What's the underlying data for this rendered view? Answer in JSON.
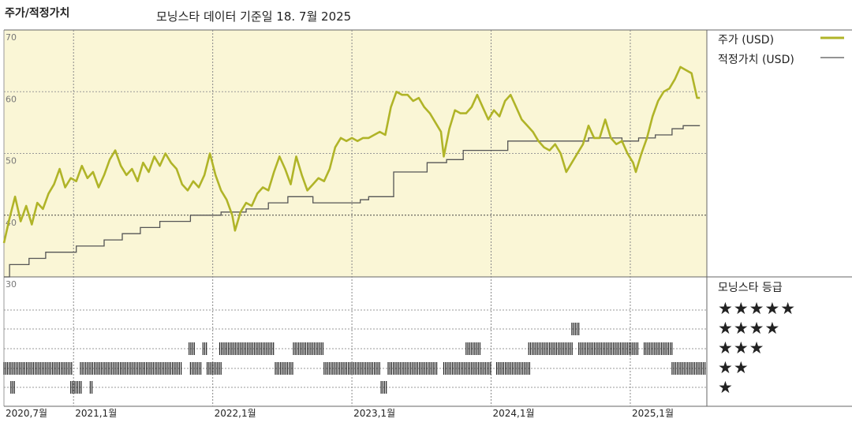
{
  "header": {
    "title": "주가/적정가치",
    "subtitle": "모닝스타 데이터 기준일 18. 7월 2025"
  },
  "legend": {
    "price": "주가 (USD)",
    "fair_value": "적정가치 (USD)"
  },
  "rating": {
    "title": "모닝스타 등급",
    "levels": [
      "★★★★★",
      "★★★★",
      "★★★",
      "★★",
      "★"
    ]
  },
  "colors": {
    "price_line": "#b0b428",
    "fair_value_line": "#555555",
    "plot_bg": "#faf6d6",
    "rating_bar": "#222222"
  },
  "chart_data": {
    "type": "line",
    "y_ticks": [
      30,
      40,
      50,
      60,
      70
    ],
    "ylim": [
      30,
      70
    ],
    "x_ticks": [
      {
        "label": "2020,7월",
        "t": 2020.5
      },
      {
        "label": "2021,1월",
        "t": 2021.0
      },
      {
        "label": "2022,1월",
        "t": 2022.0
      },
      {
        "label": "2023,1월",
        "t": 2023.0
      },
      {
        "label": "2024,1월",
        "t": 2024.0
      },
      {
        "label": "2025,1월",
        "t": 2025.0
      }
    ],
    "xlim": [
      2020.5,
      2025.55
    ],
    "dashed_ref_y": 40,
    "series": [
      {
        "name": "주가 (USD)",
        "points": [
          [
            2020.5,
            35.5
          ],
          [
            2020.54,
            39.5
          ],
          [
            2020.58,
            43.0
          ],
          [
            2020.62,
            39.0
          ],
          [
            2020.66,
            41.5
          ],
          [
            2020.7,
            38.5
          ],
          [
            2020.74,
            42.0
          ],
          [
            2020.78,
            41.0
          ],
          [
            2020.82,
            43.5
          ],
          [
            2020.86,
            45.0
          ],
          [
            2020.9,
            47.5
          ],
          [
            2020.94,
            44.5
          ],
          [
            2020.98,
            46.0
          ],
          [
            2021.02,
            45.5
          ],
          [
            2021.06,
            48.0
          ],
          [
            2021.1,
            46.0
          ],
          [
            2021.14,
            47.0
          ],
          [
            2021.18,
            44.5
          ],
          [
            2021.22,
            46.5
          ],
          [
            2021.26,
            49.0
          ],
          [
            2021.3,
            50.5
          ],
          [
            2021.34,
            48.0
          ],
          [
            2021.38,
            46.5
          ],
          [
            2021.42,
            47.5
          ],
          [
            2021.46,
            45.5
          ],
          [
            2021.5,
            48.5
          ],
          [
            2021.54,
            47.0
          ],
          [
            2021.58,
            49.5
          ],
          [
            2021.62,
            48.0
          ],
          [
            2021.66,
            50.0
          ],
          [
            2021.7,
            48.5
          ],
          [
            2021.74,
            47.5
          ],
          [
            2021.78,
            45.0
          ],
          [
            2021.82,
            44.0
          ],
          [
            2021.86,
            45.5
          ],
          [
            2021.9,
            44.5
          ],
          [
            2021.94,
            46.5
          ],
          [
            2021.98,
            50.0
          ],
          [
            2022.02,
            46.5
          ],
          [
            2022.06,
            44.0
          ],
          [
            2022.1,
            42.5
          ],
          [
            2022.14,
            40.0
          ],
          [
            2022.16,
            37.5
          ],
          [
            2022.2,
            40.5
          ],
          [
            2022.24,
            42.0
          ],
          [
            2022.28,
            41.5
          ],
          [
            2022.32,
            43.5
          ],
          [
            2022.36,
            44.5
          ],
          [
            2022.4,
            44.0
          ],
          [
            2022.44,
            47.0
          ],
          [
            2022.48,
            49.5
          ],
          [
            2022.52,
            47.5
          ],
          [
            2022.56,
            45.0
          ],
          [
            2022.6,
            49.5
          ],
          [
            2022.64,
            46.5
          ],
          [
            2022.68,
            44.0
          ],
          [
            2022.72,
            45.0
          ],
          [
            2022.76,
            46.0
          ],
          [
            2022.8,
            45.5
          ],
          [
            2022.84,
            47.5
          ],
          [
            2022.88,
            51.0
          ],
          [
            2022.92,
            52.5
          ],
          [
            2022.96,
            52.0
          ],
          [
            2023.0,
            52.5
          ],
          [
            2023.04,
            52.0
          ],
          [
            2023.08,
            52.5
          ],
          [
            2023.12,
            52.5
          ],
          [
            2023.16,
            53.0
          ],
          [
            2023.2,
            53.5
          ],
          [
            2023.24,
            53.0
          ],
          [
            2023.28,
            57.5
          ],
          [
            2023.32,
            60.0
          ],
          [
            2023.36,
            59.5
          ],
          [
            2023.4,
            59.5
          ],
          [
            2023.44,
            58.5
          ],
          [
            2023.48,
            59.0
          ],
          [
            2023.52,
            57.5
          ],
          [
            2023.56,
            56.5
          ],
          [
            2023.6,
            55.0
          ],
          [
            2023.64,
            53.5
          ],
          [
            2023.66,
            49.5
          ],
          [
            2023.7,
            54.0
          ],
          [
            2023.74,
            57.0
          ],
          [
            2023.78,
            56.5
          ],
          [
            2023.82,
            56.5
          ],
          [
            2023.86,
            57.5
          ],
          [
            2023.9,
            59.5
          ],
          [
            2023.94,
            57.5
          ],
          [
            2023.98,
            55.5
          ],
          [
            2024.02,
            57.0
          ],
          [
            2024.06,
            56.0
          ],
          [
            2024.1,
            58.5
          ],
          [
            2024.14,
            59.5
          ],
          [
            2024.18,
            57.5
          ],
          [
            2024.22,
            55.5
          ],
          [
            2024.26,
            54.5
          ],
          [
            2024.3,
            53.5
          ],
          [
            2024.34,
            52.0
          ],
          [
            2024.38,
            51.0
          ],
          [
            2024.42,
            50.5
          ],
          [
            2024.46,
            51.5
          ],
          [
            2024.5,
            50.0
          ],
          [
            2024.54,
            47.0
          ],
          [
            2024.58,
            48.5
          ],
          [
            2024.62,
            50.0
          ],
          [
            2024.66,
            51.5
          ],
          [
            2024.7,
            54.5
          ],
          [
            2024.74,
            52.5
          ],
          [
            2024.78,
            52.5
          ],
          [
            2024.82,
            55.5
          ],
          [
            2024.86,
            52.5
          ],
          [
            2024.9,
            51.5
          ],
          [
            2024.94,
            52.0
          ],
          [
            2024.98,
            50.0
          ],
          [
            2025.02,
            48.5
          ],
          [
            2025.04,
            47.0
          ],
          [
            2025.08,
            50.0
          ],
          [
            2025.12,
            52.5
          ],
          [
            2025.16,
            56.0
          ],
          [
            2025.2,
            58.5
          ],
          [
            2025.24,
            60.0
          ],
          [
            2025.28,
            60.5
          ],
          [
            2025.32,
            62.0
          ],
          [
            2025.36,
            64.0
          ],
          [
            2025.4,
            63.5
          ],
          [
            2025.44,
            63.0
          ],
          [
            2025.48,
            59.0
          ],
          [
            2025.5,
            59.0
          ]
        ]
      },
      {
        "name": "적정가치 (USD)",
        "steps": [
          [
            2020.5,
            30.0
          ],
          [
            2020.54,
            32.0
          ],
          [
            2020.68,
            33.0
          ],
          [
            2020.8,
            34.0
          ],
          [
            2021.02,
            35.0
          ],
          [
            2021.22,
            36.0
          ],
          [
            2021.35,
            37.0
          ],
          [
            2021.48,
            38.0
          ],
          [
            2021.62,
            39.0
          ],
          [
            2021.84,
            40.0
          ],
          [
            2022.06,
            40.5
          ],
          [
            2022.24,
            41.0
          ],
          [
            2022.4,
            42.0
          ],
          [
            2022.54,
            43.0
          ],
          [
            2022.72,
            42.0
          ],
          [
            2022.92,
            42.0
          ],
          [
            2023.06,
            42.5
          ],
          [
            2023.12,
            43.0
          ],
          [
            2023.3,
            47.0
          ],
          [
            2023.44,
            47.0
          ],
          [
            2023.54,
            48.5
          ],
          [
            2023.68,
            49.0
          ],
          [
            2023.8,
            50.5
          ],
          [
            2024.12,
            52.0
          ],
          [
            2024.3,
            52.0
          ],
          [
            2024.48,
            52.0
          ],
          [
            2024.7,
            52.5
          ],
          [
            2024.94,
            52.0
          ],
          [
            2025.06,
            52.5
          ],
          [
            2025.18,
            53.0
          ],
          [
            2025.3,
            54.0
          ],
          [
            2025.38,
            54.5
          ],
          [
            2025.5,
            54.5
          ]
        ]
      }
    ],
    "rating_periods": {
      "5": [],
      "4": [
        [
          2024.58,
          2024.64
        ]
      ],
      "3": [
        [
          2021.83,
          2021.87
        ],
        [
          2021.93,
          2021.96
        ],
        [
          2022.05,
          2022.44
        ],
        [
          2022.58,
          2022.8
        ],
        [
          2023.82,
          2023.92
        ],
        [
          2024.27,
          2024.59
        ],
        [
          2024.63,
          2025.06
        ],
        [
          2025.1,
          2025.31
        ]
      ],
      "2": [
        [
          2020.5,
          2020.99
        ],
        [
          2021.05,
          2021.78
        ],
        [
          2021.84,
          2021.92
        ],
        [
          2021.96,
          2022.06
        ],
        [
          2022.45,
          2022.58
        ],
        [
          2022.8,
          2023.2
        ],
        [
          2023.26,
          2023.62
        ],
        [
          2023.66,
          2024.0
        ],
        [
          2024.04,
          2024.28
        ],
        [
          2025.3,
          2025.54
        ]
      ],
      "1": [
        [
          2020.55,
          2020.58
        ],
        [
          2020.98,
          2021.06
        ],
        [
          2021.12,
          2021.14
        ],
        [
          2023.21,
          2023.25
        ]
      ]
    }
  }
}
